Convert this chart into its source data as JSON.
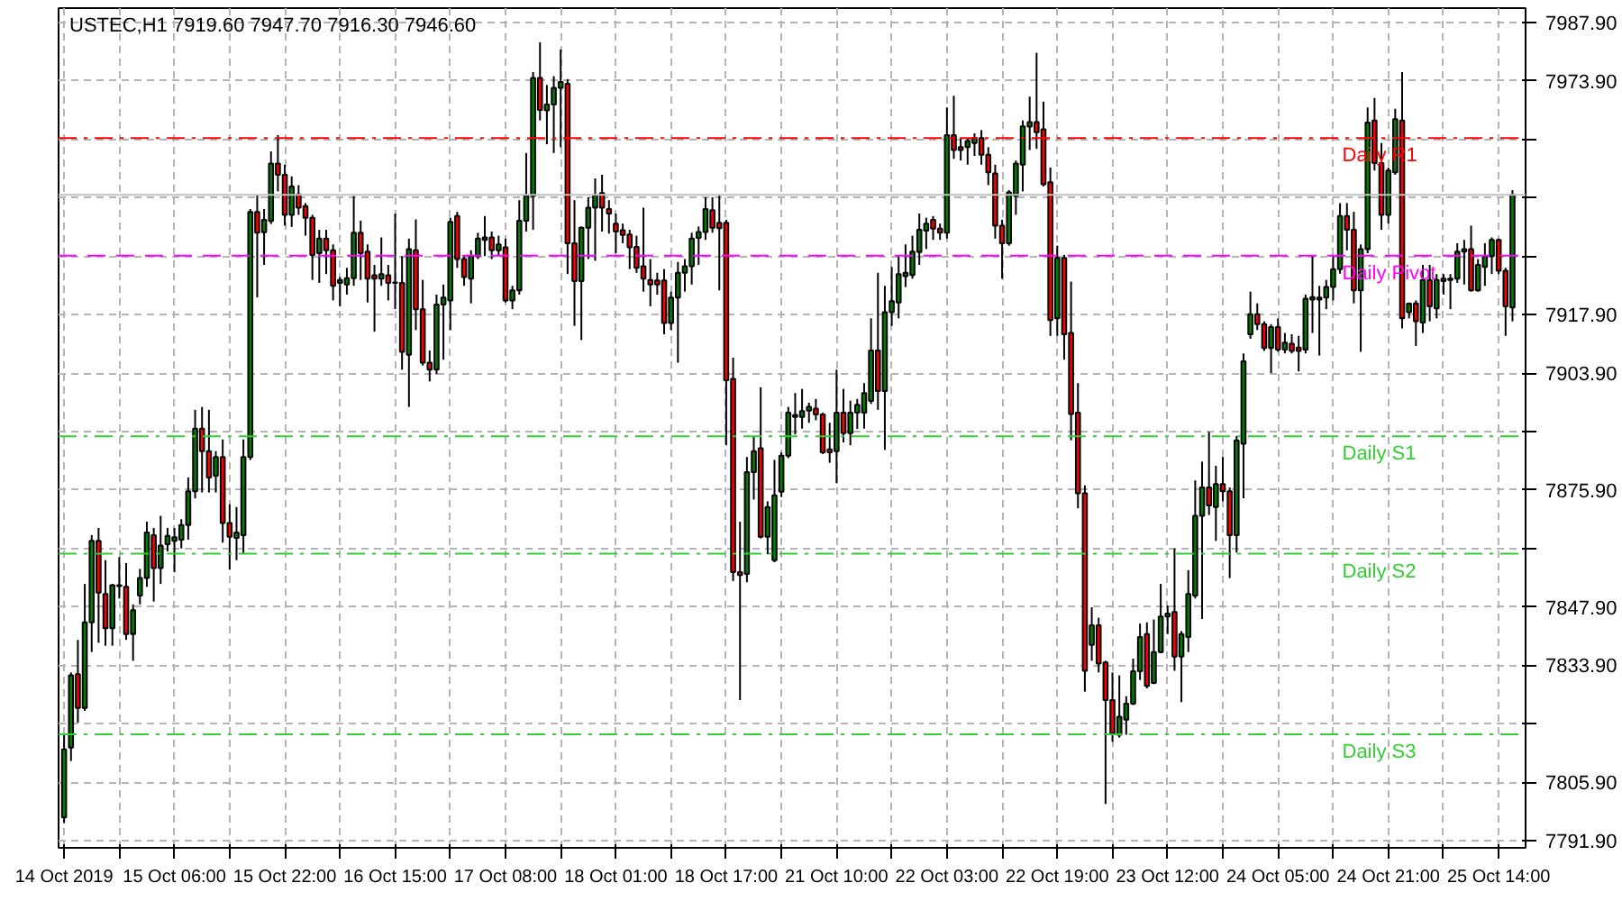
{
  "chart_data": {
    "type": "candlestick",
    "title": "USTEC,H1  7919.60 7947.70 7916.30 7946.60",
    "categories": [
      "14 Oct 2019",
      null,
      null,
      null,
      null,
      null,
      null,
      null,
      null,
      null,
      null,
      null,
      null,
      null,
      null,
      null,
      "15 Oct 06:00",
      null,
      null,
      null,
      null,
      null,
      null,
      null,
      null,
      null,
      null,
      null,
      null,
      null,
      null,
      null,
      "15 Oct 22:00",
      null,
      null,
      null,
      null,
      null,
      null,
      null,
      null,
      null,
      null,
      null,
      null,
      null,
      null,
      null,
      "16 Oct 15:00",
      null,
      null,
      null,
      null,
      null,
      null,
      null,
      null,
      null,
      null,
      null,
      null,
      null,
      null,
      null,
      "17 Oct 08:00",
      null,
      null,
      null,
      null,
      null,
      null,
      null,
      null,
      null,
      null,
      null,
      null,
      null,
      null,
      null,
      "18 Oct 01:00",
      null,
      null,
      null,
      null,
      null,
      null,
      null,
      null,
      null,
      null,
      null,
      null,
      null,
      null,
      null,
      "18 Oct 17:00",
      null,
      null,
      null,
      null,
      null,
      null,
      null,
      null,
      null,
      null,
      null,
      null,
      null,
      null,
      null,
      "21 Oct 10:00",
      null,
      null,
      null,
      null,
      null,
      null,
      null,
      null,
      null,
      null,
      null,
      null,
      null,
      null,
      null,
      "22 Oct 03:00",
      null,
      null,
      null,
      null,
      null,
      null,
      null,
      null,
      null,
      null,
      null,
      null,
      null,
      null,
      null,
      "22 Oct 19:00",
      null,
      null,
      null,
      null,
      null,
      null,
      null,
      null,
      null,
      null,
      null,
      null,
      null,
      null,
      null,
      "23 Oct 12:00",
      null,
      null,
      null,
      null,
      null,
      null,
      null,
      null,
      null,
      null,
      null,
      null,
      null,
      null,
      null,
      "24 Oct 05:00",
      null,
      null,
      null,
      null,
      null,
      null,
      null,
      null,
      null,
      null,
      null,
      null,
      null,
      null,
      null,
      "24 Oct 21:00",
      null,
      null,
      null,
      null,
      null,
      null,
      null,
      null,
      null,
      null,
      null,
      null,
      null,
      null,
      null,
      "25 Oct 14:00",
      null,
      null
    ],
    "ohlc": [
      [
        7797.5,
        7817.3,
        7796.1,
        7813.8
      ],
      [
        7814.2,
        7832.2,
        7811.0,
        7831.5
      ],
      [
        7831.8,
        7840.0,
        7820.2,
        7823.7
      ],
      [
        7823.7,
        7853.4,
        7823.0,
        7844.2
      ],
      [
        7844.2,
        7865.1,
        7837.1,
        7863.7
      ],
      [
        7863.7,
        7866.8,
        7839.3,
        7851.3
      ],
      [
        7851.0,
        7859.1,
        7838.6,
        7842.8
      ],
      [
        7842.8,
        7853.4,
        7838.6,
        7853.1
      ],
      [
        7852.9,
        7859.8,
        7849.9,
        7853.1
      ],
      [
        7852.7,
        7858.4,
        7840.0,
        7841.4
      ],
      [
        7841.4,
        7848.5,
        7835.0,
        7847.1
      ],
      [
        7850.6,
        7857.0,
        7848.5,
        7854.8
      ],
      [
        7854.8,
        7868.3,
        7852.7,
        7865.7
      ],
      [
        7865.1,
        7866.8,
        7849.2,
        7857.2
      ],
      [
        7857.2,
        7869.7,
        7853.4,
        7862.6
      ],
      [
        7862.9,
        7866.8,
        7861.2,
        7864.9
      ],
      [
        7863.7,
        7866.8,
        7856.2,
        7864.6
      ],
      [
        7864.0,
        7868.9,
        7861.9,
        7867.5
      ],
      [
        7867.5,
        7878.9,
        7864.0,
        7875.6
      ],
      [
        7875.6,
        7895.1,
        7873.9,
        7890.6
      ],
      [
        7890.6,
        7895.8,
        7875.3,
        7885.2
      ],
      [
        7885.2,
        7895.1,
        7875.3,
        7878.9
      ],
      [
        7879.3,
        7885.2,
        7875.3,
        7883.8
      ],
      [
        7883.8,
        7888.0,
        7863.3,
        7868.0
      ],
      [
        7868.0,
        7872.5,
        7856.9,
        7864.7
      ],
      [
        7864.4,
        7871.8,
        7859.1,
        7865.7
      ],
      [
        7865.1,
        7888.0,
        7860.5,
        7883.8
      ],
      [
        7883.8,
        7943.2,
        7883.1,
        7942.5
      ],
      [
        7942.5,
        7946.7,
        7922.0,
        7937.5
      ],
      [
        7937.6,
        7943.2,
        7929.8,
        7940.6
      ],
      [
        7940.3,
        7957.0,
        7939.6,
        7954.1
      ],
      [
        7954.1,
        7960.9,
        7947.4,
        7951.4
      ],
      [
        7951.4,
        7953.8,
        7939.2,
        7941.8
      ],
      [
        7941.8,
        7951.0,
        7938.9,
        7948.6
      ],
      [
        7946.7,
        7948.9,
        7941.8,
        7943.5
      ],
      [
        7943.9,
        7944.6,
        7936.8,
        7941.1
      ],
      [
        7941.1,
        7941.8,
        7926.2,
        7932.2
      ],
      [
        7932.6,
        7938.2,
        7925.5,
        7936.1
      ],
      [
        7936.1,
        7938.2,
        7927.6,
        7933.3
      ],
      [
        7933.3,
        7934.7,
        7921.3,
        7924.8
      ],
      [
        7925.5,
        7926.9,
        7919.9,
        7926.2
      ],
      [
        7925.1,
        7929.1,
        7922.7,
        7926.6
      ],
      [
        7926.6,
        7946.3,
        7924.8,
        7937.5
      ],
      [
        7937.5,
        7940.4,
        7926.2,
        7932.6
      ],
      [
        7933.0,
        7934.7,
        7920.8,
        7926.5
      ],
      [
        7927.3,
        7929.8,
        7913.8,
        7926.5
      ],
      [
        7926.5,
        7936.4,
        7924.8,
        7927.6
      ],
      [
        7927.3,
        7929.8,
        7921.3,
        7925.5
      ],
      [
        7925.6,
        7942.1,
        7919.2,
        7925.5
      ],
      [
        7925.5,
        7931.9,
        7904.7,
        7909.0
      ],
      [
        7908.3,
        7936.1,
        7895.8,
        7933.6
      ],
      [
        7933.3,
        7940.7,
        7914.2,
        7919.2
      ],
      [
        7919.2,
        7926.2,
        7905.7,
        7906.4
      ],
      [
        7906.4,
        7909.3,
        7901.9,
        7904.7
      ],
      [
        7904.7,
        7922.7,
        7903.6,
        7920.3
      ],
      [
        7920.3,
        7925.1,
        7907.1,
        7922.0
      ],
      [
        7921.3,
        7941.1,
        7914.2,
        7940.1
      ],
      [
        7941.5,
        7942.5,
        7929.1,
        7931.2
      ],
      [
        7931.2,
        7931.9,
        7924.8,
        7926.9
      ],
      [
        7926.5,
        7933.3,
        7920.6,
        7931.9
      ],
      [
        7931.9,
        7937.5,
        7931.2,
        7936.1
      ],
      [
        7935.8,
        7941.5,
        7931.9,
        7936.4
      ],
      [
        7936.4,
        7937.8,
        7931.2,
        7933.3
      ],
      [
        7933.3,
        7936.8,
        7931.9,
        7934.7
      ],
      [
        7934.0,
        7936.1,
        7920.8,
        7921.3
      ],
      [
        7921.3,
        7924.8,
        7919.2,
        7923.7
      ],
      [
        7923.7,
        7945.3,
        7922.7,
        7940.4
      ],
      [
        7940.4,
        7956.6,
        7937.8,
        7946.3
      ],
      [
        7946.3,
        7976.0,
        7938.2,
        7974.6
      ],
      [
        7974.6,
        7983.1,
        7964.4,
        7966.9
      ],
      [
        7966.8,
        7972.9,
        7958.7,
        7968.2
      ],
      [
        7968.2,
        7975.0,
        7956.6,
        7972.2
      ],
      [
        7972.2,
        7981.4,
        7958.0,
        7973.6
      ],
      [
        7973.2,
        7974.3,
        7927.6,
        7935.0
      ],
      [
        7935.0,
        7945.3,
        7915.2,
        7925.9
      ],
      [
        7925.9,
        7939.0,
        7911.8,
        7938.7
      ],
      [
        7938.7,
        7946.0,
        7931.2,
        7943.5
      ],
      [
        7943.5,
        7950.5,
        7930.8,
        7946.4
      ],
      [
        7947.0,
        7951.4,
        7937.8,
        7943.5
      ],
      [
        7943.2,
        7945.3,
        7937.3,
        7942.1
      ],
      [
        7939.7,
        7942.1,
        7932.6,
        7937.8
      ],
      [
        7938.1,
        7939.7,
        7935.0,
        7937.0
      ],
      [
        7937.1,
        7938.2,
        7928.8,
        7934.0
      ],
      [
        7934.1,
        7936.8,
        7927.9,
        7929.1
      ],
      [
        7929.5,
        7943.5,
        7923.4,
        7926.5
      ],
      [
        7926.2,
        7931.2,
        7919.9,
        7925.1
      ],
      [
        7926.1,
        7927.9,
        7922.7,
        7925.1
      ],
      [
        7926.1,
        7928.8,
        7913.2,
        7915.9
      ],
      [
        7915.9,
        7923.4,
        7914.2,
        7922.0
      ],
      [
        7922.0,
        7930.5,
        7906.4,
        7927.9
      ],
      [
        7927.9,
        7931.2,
        7923.4,
        7929.5
      ],
      [
        7929.5,
        7937.5,
        7925.1,
        7936.1
      ],
      [
        7936.3,
        7939.0,
        7929.8,
        7937.7
      ],
      [
        7937.7,
        7946.0,
        7935.8,
        7943.2
      ],
      [
        7942.9,
        7946.0,
        7937.5,
        7938.7
      ],
      [
        7939.9,
        7946.7,
        7923.7,
        7938.6
      ],
      [
        7939.9,
        7940.6,
        7886.6,
        7902.2
      ],
      [
        7902.5,
        7907.6,
        7854.1,
        7856.2
      ],
      [
        7856.2,
        7868.3,
        7825.6,
        7855.5
      ],
      [
        7855.8,
        7883.8,
        7853.8,
        7880.2
      ],
      [
        7880.2,
        7888.7,
        7873.6,
        7885.2
      ],
      [
        7885.9,
        7900.5,
        7864.3,
        7864.7
      ],
      [
        7864.7,
        7873.2,
        7860.5,
        7871.8
      ],
      [
        7859.1,
        7883.1,
        7858.6,
        7874.6
      ],
      [
        7875.5,
        7884.9,
        7874.2,
        7884.1
      ],
      [
        7884.1,
        7895.8,
        7883.5,
        7894.4
      ],
      [
        7893.4,
        7899.1,
        7889.2,
        7893.9
      ],
      [
        7893.4,
        7900.1,
        7890.6,
        7894.8
      ],
      [
        7894.9,
        7896.8,
        7892.0,
        7895.8
      ],
      [
        7895.4,
        7897.7,
        7892.6,
        7894.0
      ],
      [
        7894.0,
        7894.4,
        7884.5,
        7884.9
      ],
      [
        7885.6,
        7892.0,
        7882.4,
        7884.9
      ],
      [
        7885.2,
        7904.7,
        7877.5,
        7894.4
      ],
      [
        7894.4,
        7900.1,
        7887.3,
        7889.5
      ],
      [
        7889.5,
        7897.3,
        7886.6,
        7894.4
      ],
      [
        7894.4,
        7897.7,
        7890.5,
        7896.3
      ],
      [
        7894.4,
        7901.5,
        7890.6,
        7899.1
      ],
      [
        7897.2,
        7917.0,
        7896.5,
        7909.3
      ],
      [
        7909.3,
        7927.9,
        7895.1,
        7899.6
      ],
      [
        7899.6,
        7924.8,
        7885.5,
        7918.5
      ],
      [
        7918.5,
        7929.3,
        7915.2,
        7921.1
      ],
      [
        7920.8,
        7931.9,
        7917.0,
        7927.6
      ],
      [
        7927.1,
        7934.7,
        7924.5,
        7927.9
      ],
      [
        7927.4,
        7936.8,
        7926.5,
        7933.0
      ],
      [
        7932.9,
        7942.1,
        7929.8,
        7938.2
      ],
      [
        7938.0,
        7941.1,
        7933.6,
        7939.7
      ],
      [
        7940.6,
        7941.5,
        7935.8,
        7938.5
      ],
      [
        7938.5,
        7939.7,
        7935.8,
        7937.5
      ],
      [
        7937.5,
        7967.5,
        7936.1,
        7960.9
      ],
      [
        7960.9,
        7970.3,
        7955.2,
        7957.3
      ],
      [
        7958.0,
        7960.2,
        7954.8,
        7957.3
      ],
      [
        7958.0,
        7960.2,
        7953.8,
        7959.5
      ],
      [
        7959.0,
        7961.3,
        7955.9,
        7960.2
      ],
      [
        7960.2,
        7962.1,
        7953.8,
        7956.2
      ],
      [
        7956.2,
        7958.0,
        7948.9,
        7952.0
      ],
      [
        7951.7,
        7953.8,
        7936.1,
        7939.2
      ],
      [
        7939.2,
        7940.6,
        7926.5,
        7935.0
      ],
      [
        7935.0,
        7947.7,
        7934.4,
        7947.2
      ],
      [
        7946.3,
        7954.8,
        7941.8,
        7954.1
      ],
      [
        7953.8,
        7964.4,
        7947.4,
        7963.0
      ],
      [
        7962.9,
        7970.1,
        7957.3,
        7964.0
      ],
      [
        7964.0,
        7980.6,
        7957.6,
        7961.6
      ],
      [
        7962.3,
        7968.9,
        7948.6,
        7949.1
      ],
      [
        7949.6,
        7953.1,
        7912.8,
        7916.6
      ],
      [
        7917.0,
        7934.4,
        7912.8,
        7931.5
      ],
      [
        7931.5,
        7932.2,
        7907.1,
        7913.2
      ],
      [
        7913.5,
        7925.8,
        7887.8,
        7894.1
      ],
      [
        7894.4,
        7901.5,
        7871.5,
        7875.1
      ],
      [
        7875.1,
        7877.0,
        7827.6,
        7832.6
      ],
      [
        7838.8,
        7847.8,
        7835.0,
        7843.5
      ],
      [
        7843.5,
        7845.3,
        7832.2,
        7834.3
      ],
      [
        7834.6,
        7835.0,
        7800.7,
        7825.6
      ],
      [
        7825.6,
        7832.2,
        7815.6,
        7817.6
      ],
      [
        7817.3,
        7831.5,
        7816.6,
        7821.6
      ],
      [
        7820.9,
        7826.5,
        7817.3,
        7824.7
      ],
      [
        7824.7,
        7835.5,
        7824.4,
        7832.5
      ],
      [
        7832.5,
        7843.9,
        7830.4,
        7840.7
      ],
      [
        7841.4,
        7844.2,
        7828.4,
        7829.0
      ],
      [
        7829.7,
        7844.9,
        7829.4,
        7837.1
      ],
      [
        7837.1,
        7853.4,
        7836.8,
        7845.6
      ],
      [
        7845.6,
        7848.2,
        7841.4,
        7846.3
      ],
      [
        7846.7,
        7861.9,
        7832.6,
        7836.0
      ],
      [
        7836.0,
        7842.1,
        7825.1,
        7841.4
      ],
      [
        7840.7,
        7856.7,
        7837.1,
        7851.0
      ],
      [
        7850.6,
        7878.2,
        7849.9,
        7869.7
      ],
      [
        7869.7,
        7882.7,
        7845.0,
        7876.5
      ],
      [
        7876.5,
        7889.8,
        7869.9,
        7872.2
      ],
      [
        7871.8,
        7881.7,
        7863.7,
        7877.3
      ],
      [
        7877.3,
        7883.8,
        7873.2,
        7875.6
      ],
      [
        7875.6,
        7876.5,
        7854.8,
        7865.1
      ],
      [
        7865.1,
        7888.8,
        7860.9,
        7887.8
      ],
      [
        7887.0,
        7908.6,
        7873.9,
        7906.7
      ],
      [
        7913.2,
        7923.4,
        7912.1,
        7918.0
      ],
      [
        7918.0,
        7920.6,
        7914.2,
        7915.6
      ],
      [
        7915.6,
        7916.3,
        7909.2,
        7909.9
      ],
      [
        7909.9,
        7915.6,
        7903.9,
        7914.9
      ],
      [
        7914.9,
        7917.0,
        7909.0,
        7909.5
      ],
      [
        7909.5,
        7913.5,
        7908.6,
        7911.2
      ],
      [
        7910.9,
        7913.2,
        7908.6,
        7909.2
      ],
      [
        7910.0,
        7912.8,
        7904.3,
        7909.2
      ],
      [
        7909.5,
        7922.7,
        7908.6,
        7921.7
      ],
      [
        7921.5,
        7931.9,
        7913.5,
        7922.1
      ],
      [
        7921.5,
        7924.8,
        7908.1,
        7922.0
      ],
      [
        7922.0,
        7926.2,
        7919.2,
        7924.5
      ],
      [
        7924.5,
        7931.9,
        7921.3,
        7928.8
      ],
      [
        7928.8,
        7944.6,
        7927.7,
        7941.5
      ],
      [
        7941.5,
        7944.6,
        7933.3,
        7938.2
      ],
      [
        7938.2,
        7942.5,
        7920.6,
        7923.7
      ],
      [
        7923.7,
        7934.7,
        7909.0,
        7933.6
      ],
      [
        7933.6,
        7967.5,
        7932.6,
        7963.9
      ],
      [
        7964.4,
        7969.8,
        7952.4,
        7954.2
      ],
      [
        7954.2,
        7959.0,
        7938.2,
        7941.8
      ],
      [
        7941.8,
        7953.1,
        7939.7,
        7952.4
      ],
      [
        7952.0,
        7967.2,
        7951.4,
        7964.7
      ],
      [
        7964.4,
        7976.0,
        7914.6,
        7917.0
      ],
      [
        7918.5,
        7920.8,
        7917.0,
        7920.5
      ],
      [
        7920.6,
        7921.3,
        7910.4,
        7916.3
      ],
      [
        7916.0,
        7929.8,
        7913.5,
        7926.2
      ],
      [
        7926.2,
        7929.8,
        7916.3,
        7919.9
      ],
      [
        7919.4,
        7927.6,
        7917.0,
        7926.2
      ],
      [
        7925.9,
        7927.6,
        7922.7,
        7926.5
      ],
      [
        7926.2,
        7927.6,
        7919.2,
        7926.5
      ],
      [
        7926.5,
        7935.0,
        7925.5,
        7933.0
      ],
      [
        7933.0,
        7935.8,
        7925.1,
        7933.6
      ],
      [
        7933.6,
        7939.2,
        7923.4,
        7923.7
      ],
      [
        7923.7,
        7931.2,
        7923.4,
        7929.8
      ],
      [
        7929.3,
        7935.0,
        7924.8,
        7931.9
      ],
      [
        7931.9,
        7936.4,
        7927.6,
        7935.8
      ],
      [
        7935.8,
        7936.1,
        7927.6,
        7928.4
      ],
      [
        7928.4,
        7929.1,
        7912.8,
        7919.9
      ],
      [
        7919.6,
        7947.7,
        7916.3,
        7946.6
      ]
    ],
    "colors": [
      "#008000",
      "#008000",
      "#ff0000",
      "#008000",
      "#008000",
      "#ff0000",
      "#ff0000",
      "#008000",
      "#008000",
      "#ff0000",
      "#008000",
      "#008000",
      "#008000",
      "#ff0000",
      "#008000",
      "#008000",
      "#008000",
      "#008000",
      "#008000",
      "#008000",
      "#ff0000",
      "#ff0000",
      "#008000",
      "#ff0000",
      "#ff0000",
      "#008000",
      "#008000",
      "#008000",
      "#ff0000",
      "#008000",
      "#008000",
      "#ff0000",
      "#ff0000",
      "#008000",
      "#ff0000",
      "#ff0000",
      "#ff0000",
      "#008000",
      "#ff0000",
      "#ff0000",
      "#008000",
      "#008000",
      "#008000",
      "#ff0000",
      "#ff0000",
      "#ff0000",
      "#008000",
      "#ff0000",
      "#ff0000",
      "#ff0000",
      "#008000",
      "#ff0000",
      "#ff0000",
      "#ff0000",
      "#008000",
      "#008000",
      "#008000",
      "#ff0000",
      "#ff0000",
      "#008000",
      "#008000",
      "#008000",
      "#ff0000",
      "#008000",
      "#ff0000",
      "#008000",
      "#008000",
      "#008000",
      "#008000",
      "#ff0000",
      "#008000",
      "#008000",
      "#008000",
      "#ff0000",
      "#ff0000",
      "#008000",
      "#008000",
      "#008000",
      "#ff0000",
      "#ff0000",
      "#ff0000",
      "#ff0000",
      "#ff0000",
      "#ff0000",
      "#ff0000",
      "#ff0000",
      "#ff0000",
      "#ff0000",
      "#008000",
      "#008000",
      "#008000",
      "#008000",
      "#008000",
      "#008000",
      "#ff0000",
      "#ff0000",
      "#ff0000",
      "#ff0000",
      "#ff0000",
      "#008000",
      "#008000",
      "#ff0000",
      "#008000",
      "#008000",
      "#008000",
      "#008000",
      "#008000",
      "#008000",
      "#008000",
      "#ff0000",
      "#ff0000",
      "#ff0000",
      "#008000",
      "#ff0000",
      "#008000",
      "#008000",
      "#008000",
      "#008000",
      "#ff0000",
      "#008000",
      "#008000",
      "#008000",
      "#008000",
      "#008000",
      "#008000",
      "#008000",
      "#ff0000",
      "#ff0000",
      "#008000",
      "#ff0000",
      "#ff0000",
      "#008000",
      "#008000",
      "#ff0000",
      "#ff0000",
      "#ff0000",
      "#ff0000",
      "#008000",
      "#008000",
      "#008000",
      "#008000",
      "#ff0000",
      "#ff0000",
      "#ff0000",
      "#008000",
      "#ff0000",
      "#ff0000",
      "#ff0000",
      "#ff0000",
      "#008000",
      "#ff0000",
      "#ff0000",
      "#ff0000",
      "#008000",
      "#008000",
      "#008000",
      "#008000",
      "#ff0000",
      "#008000",
      "#008000",
      "#008000",
      "#ff0000",
      "#008000",
      "#008000",
      "#008000",
      "#008000",
      "#ff0000",
      "#008000",
      "#ff0000",
      "#ff0000",
      "#008000",
      "#008000",
      "#008000",
      "#ff0000",
      "#ff0000",
      "#008000",
      "#ff0000",
      "#008000",
      "#ff0000",
      "#ff0000",
      "#008000",
      "#008000",
      "#008000",
      "#008000",
      "#008000",
      "#008000",
      "#ff0000",
      "#ff0000",
      "#008000",
      "#008000",
      "#ff0000",
      "#ff0000",
      "#008000",
      "#008000",
      "#ff0000",
      "#008000",
      "#ff0000",
      "#008000",
      "#ff0000",
      "#008000",
      "#008000",
      "#008000",
      "#008000",
      "#008000",
      "#ff0000",
      "#008000",
      "#008000",
      "#008000",
      "#ff0000",
      "#ff0000",
      "#008000"
    ],
    "ylim": [
      7790.2,
      7991.3
    ],
    "yticks": [
      {
        "value": 7791.9,
        "label": "7791.90"
      },
      {
        "value": 7805.9,
        "label": "7805.90"
      },
      {
        "value": 7819.9,
        "label": null
      },
      {
        "value": 7833.9,
        "label": "7833.90"
      },
      {
        "value": 7847.9,
        "label": "7847.90"
      },
      {
        "value": 7861.9,
        "label": null
      },
      {
        "value": 7875.9,
        "label": "7875.90"
      },
      {
        "value": 7889.9,
        "label": null
      },
      {
        "value": 7903.9,
        "label": "7903.90"
      },
      {
        "value": 7917.9,
        "label": "7917.90"
      },
      {
        "value": 7931.9,
        "label": null
      },
      {
        "value": 7945.9,
        "label": null
      },
      {
        "value": 7959.9,
        "label": null
      },
      {
        "value": 7973.9,
        "label": "7973.90"
      },
      {
        "value": 7987.9,
        "label": "7987.90"
      }
    ],
    "grid": true,
    "ref_lines": [
      {
        "axis": "y",
        "value": 7960.17,
        "label": "Daily R1",
        "color": "#ff0000",
        "line_style": "dashdot"
      },
      {
        "axis": "y",
        "value": 7946.6,
        "label": null,
        "color": "#c0c0c0",
        "line_style": "solid"
      },
      {
        "axis": "y",
        "value": 7932.03,
        "label": "Daily Pivot",
        "color": "#ff00ff",
        "line_style": "dashed"
      },
      {
        "axis": "y",
        "value": 7888.77,
        "label": "Daily S1",
        "color": "#32cd32",
        "line_style": "dashdot"
      },
      {
        "axis": "y",
        "value": 7860.63,
        "label": "Daily S2",
        "color": "#32cd32",
        "line_style": "dashdot"
      },
      {
        "axis": "y",
        "value": 7817.37,
        "label": "Daily S3",
        "color": "#32cd32",
        "line_style": "dashdot"
      }
    ]
  }
}
